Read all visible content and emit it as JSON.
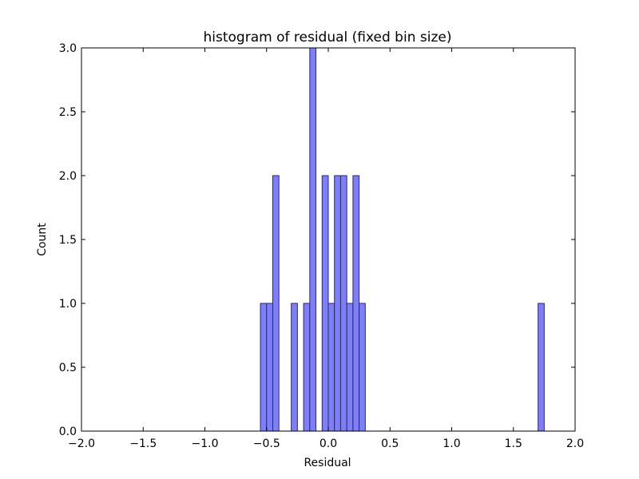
{
  "chart_data": {
    "type": "bar",
    "title": "histogram of residual (fixed bin size)",
    "xlabel": "Residual",
    "ylabel": "Count",
    "xlim": [
      -2.0,
      2.0
    ],
    "ylim": [
      0.0,
      3.0
    ],
    "xticks": [
      "−2.0",
      "−1.5",
      "−1.0",
      "−0.5",
      "0.0",
      "0.5",
      "1.0",
      "1.5",
      "2.0"
    ],
    "xtick_values": [
      -2.0,
      -1.5,
      -1.0,
      -0.5,
      0.0,
      0.5,
      1.0,
      1.5,
      2.0
    ],
    "yticks": [
      "0.0",
      "0.5",
      "1.0",
      "1.5",
      "2.0",
      "2.5",
      "3.0"
    ],
    "ytick_values": [
      0.0,
      0.5,
      1.0,
      1.5,
      2.0,
      2.5,
      3.0
    ],
    "bin_width": 0.05,
    "bins": [
      {
        "left": -0.55,
        "count": 1
      },
      {
        "left": -0.5,
        "count": 1
      },
      {
        "left": -0.45,
        "count": 2
      },
      {
        "left": -0.3,
        "count": 1
      },
      {
        "left": -0.2,
        "count": 1
      },
      {
        "left": -0.15,
        "count": 3
      },
      {
        "left": -0.05,
        "count": 2
      },
      {
        "left": 0.0,
        "count": 1
      },
      {
        "left": 0.05,
        "count": 2
      },
      {
        "left": 0.1,
        "count": 2
      },
      {
        "left": 0.15,
        "count": 1
      },
      {
        "left": 0.2,
        "count": 2
      },
      {
        "left": 0.25,
        "count": 1
      },
      {
        "left": 1.7,
        "count": 1
      }
    ],
    "colors": {
      "bar_fill": "#7f7ff5",
      "bar_edge": "#2a2a6e",
      "axis": "#000000"
    },
    "grid": false
  }
}
